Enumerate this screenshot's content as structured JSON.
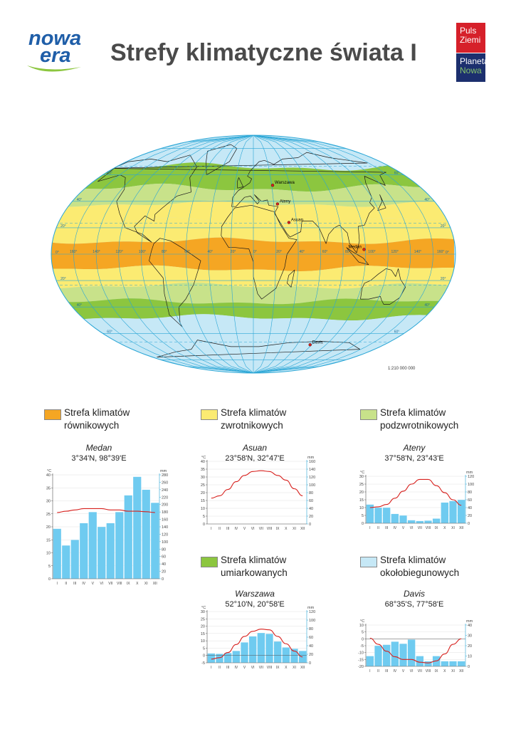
{
  "header": {
    "logo_line1": "nowa",
    "logo_line2": "era",
    "title": "Strefy klimatyczne świata I",
    "brand1_line1": "Puls",
    "brand1_line2": "Ziemi",
    "brand2_line1": "Planeta",
    "brand2_line2": "Nowa"
  },
  "colors": {
    "equatorial": "#f5a623",
    "tropical": "#fbeb72",
    "subtropical": "#c8e28a",
    "temperate": "#8cc63f",
    "polar": "#c6e8f6",
    "ocean": "#bfe4f5",
    "grid": "#2aa6d6",
    "precip_bar": "#6fcbf0",
    "temp_line": "#d7201d"
  },
  "map": {
    "scale": "1:210 000 000",
    "lat_labels": [
      "60°",
      "40°",
      "20°",
      "0°",
      "20°",
      "40°",
      "60°"
    ],
    "lon_labels": [
      "160°",
      "140°",
      "120°",
      "100°",
      "80°",
      "60°",
      "40°",
      "20°",
      "0°",
      "20°",
      "40°",
      "60°",
      "80°",
      "100°",
      "120°",
      "140°",
      "160°"
    ],
    "cities": [
      {
        "name": "Warszawa",
        "lat": 52.17,
        "lon": 20.97
      },
      {
        "name": "Ateny",
        "lat": 37.97,
        "lon": 23.72
      },
      {
        "name": "Asuan",
        "lat": 23.97,
        "lon": 32.78
      },
      {
        "name": "Medan",
        "lat": 3.57,
        "lon": 98.65
      },
      {
        "name": "Davis",
        "lat": -68.58,
        "lon": 77.97
      }
    ]
  },
  "legend": {
    "equatorial": {
      "line1": "Strefa klimatów",
      "line2": "równikowych"
    },
    "tropical": {
      "line1": "Strefa klimatów",
      "line2": "zwrotnikowych"
    },
    "subtropical": {
      "line1": "Strefa klimatów",
      "line2": "podzwrotnikowych"
    },
    "temperate": {
      "line1": "Strefa klimatów",
      "line2": "umiarkowanych"
    },
    "polar": {
      "line1": "Strefa klimatów",
      "line2": "okołobiegunowych"
    }
  },
  "chart_data": [
    {
      "type": "bar",
      "station": "Medan",
      "coords": "3°34'N, 98°39'E",
      "categories": [
        "I",
        "II",
        "III",
        "IV",
        "V",
        "VI",
        "VII",
        "VIII",
        "IX",
        "X",
        "XI",
        "XII"
      ],
      "temp_unit": "°C",
      "precip_unit": "mm",
      "temp_axis": [
        0,
        40
      ],
      "precip_axis": [
        0,
        280
      ],
      "temp_ticks": [
        0,
        5,
        10,
        15,
        20,
        25,
        30,
        35,
        40
      ],
      "precip_ticks": [
        0,
        20,
        40,
        60,
        80,
        100,
        120,
        140,
        160,
        180,
        200,
        220,
        240,
        260,
        280
      ],
      "series": [
        {
          "name": "opady",
          "values": [
            135,
            90,
            105,
            150,
            180,
            140,
            150,
            180,
            225,
            275,
            240,
            205
          ]
        },
        {
          "name": "temperatura",
          "values": [
            25.5,
            26,
            26.5,
            27,
            27,
            27,
            26.5,
            26.5,
            26,
            26,
            25.8,
            25.5
          ]
        }
      ]
    },
    {
      "type": "bar",
      "station": "Asuan",
      "coords": "23°58'N, 32°47'E",
      "categories": [
        "I",
        "II",
        "III",
        "IV",
        "V",
        "VI",
        "VII",
        "VIII",
        "IX",
        "X",
        "XI",
        "XII"
      ],
      "temp_unit": "°C",
      "precip_unit": "mm",
      "temp_axis": [
        0,
        40
      ],
      "precip_axis": [
        0,
        160
      ],
      "temp_ticks": [
        0,
        5,
        10,
        15,
        20,
        25,
        30,
        35,
        40
      ],
      "precip_ticks": [
        0,
        20,
        40,
        60,
        80,
        100,
        120,
        140,
        160
      ],
      "series": [
        {
          "name": "opady",
          "values": [
            0,
            0,
            0,
            0,
            0,
            0,
            0,
            0,
            0,
            0,
            0,
            0
          ]
        },
        {
          "name": "temperatura",
          "values": [
            16.5,
            18,
            22,
            27,
            31,
            33.5,
            34,
            33.5,
            31,
            28,
            22.5,
            18
          ]
        }
      ]
    },
    {
      "type": "bar",
      "station": "Ateny",
      "coords": "37°58'N, 23°43'E",
      "categories": [
        "I",
        "II",
        "III",
        "IV",
        "V",
        "VI",
        "VII",
        "VIII",
        "IX",
        "X",
        "XI",
        "XII"
      ],
      "temp_unit": "°C",
      "precip_unit": "mm",
      "temp_axis": [
        0,
        30
      ],
      "precip_axis": [
        0,
        120
      ],
      "temp_ticks": [
        0,
        5,
        10,
        15,
        20,
        25,
        30
      ],
      "precip_ticks": [
        0,
        20,
        40,
        60,
        80,
        100,
        120
      ],
      "series": [
        {
          "name": "opady",
          "values": [
            48,
            40,
            40,
            24,
            20,
            8,
            6,
            7,
            12,
            53,
            57,
            60
          ]
        },
        {
          "name": "temperatura",
          "values": [
            10,
            10.5,
            12,
            16,
            20.5,
            25,
            28,
            28,
            24,
            19.5,
            15,
            11.5
          ]
        }
      ]
    },
    {
      "type": "bar",
      "station": "Warszawa",
      "coords": "52°10'N, 20°58'E",
      "categories": [
        "I",
        "II",
        "III",
        "IV",
        "V",
        "VI",
        "VII",
        "VIII",
        "IX",
        "X",
        "XI",
        "XII"
      ],
      "temp_unit": "°C",
      "precip_unit": "mm",
      "temp_axis": [
        -5,
        30
      ],
      "precip_axis": [
        0,
        120
      ],
      "temp_ticks": [
        -5,
        0,
        5,
        10,
        15,
        20,
        25,
        30
      ],
      "precip_ticks": [
        0,
        20,
        40,
        60,
        80,
        100,
        120
      ],
      "series": [
        {
          "name": "opady",
          "values": [
            22,
            21,
            23,
            28,
            48,
            62,
            70,
            68,
            50,
            36,
            33,
            28
          ]
        },
        {
          "name": "temperatura",
          "values": [
            -2.5,
            -1.5,
            2,
            7.5,
            13,
            16.5,
            18,
            17.5,
            13,
            8,
            3,
            -1
          ]
        }
      ]
    },
    {
      "type": "bar",
      "station": "Davis",
      "coords": "68°35'S, 77°58'E",
      "categories": [
        "I",
        "II",
        "III",
        "IV",
        "V",
        "VI",
        "VII",
        "VIII",
        "IX",
        "X",
        "XI",
        "XII"
      ],
      "temp_unit": "°C",
      "precip_unit": "mm",
      "temp_axis": [
        -20,
        10
      ],
      "precip_axis": [
        0,
        40
      ],
      "temp_ticks": [
        -20,
        -15,
        -10,
        -5,
        0,
        5,
        10
      ],
      "precip_ticks": [
        0,
        10,
        20,
        30,
        40
      ],
      "series": [
        {
          "name": "opady",
          "values": [
            10,
            20,
            21,
            24,
            22,
            26,
            10,
            5,
            10,
            5,
            5,
            5
          ]
        },
        {
          "name": "temperatura",
          "values": [
            0.5,
            -4,
            -9,
            -13,
            -15,
            -15,
            -17,
            -17.5,
            -16,
            -11,
            -4,
            0
          ]
        }
      ]
    }
  ]
}
